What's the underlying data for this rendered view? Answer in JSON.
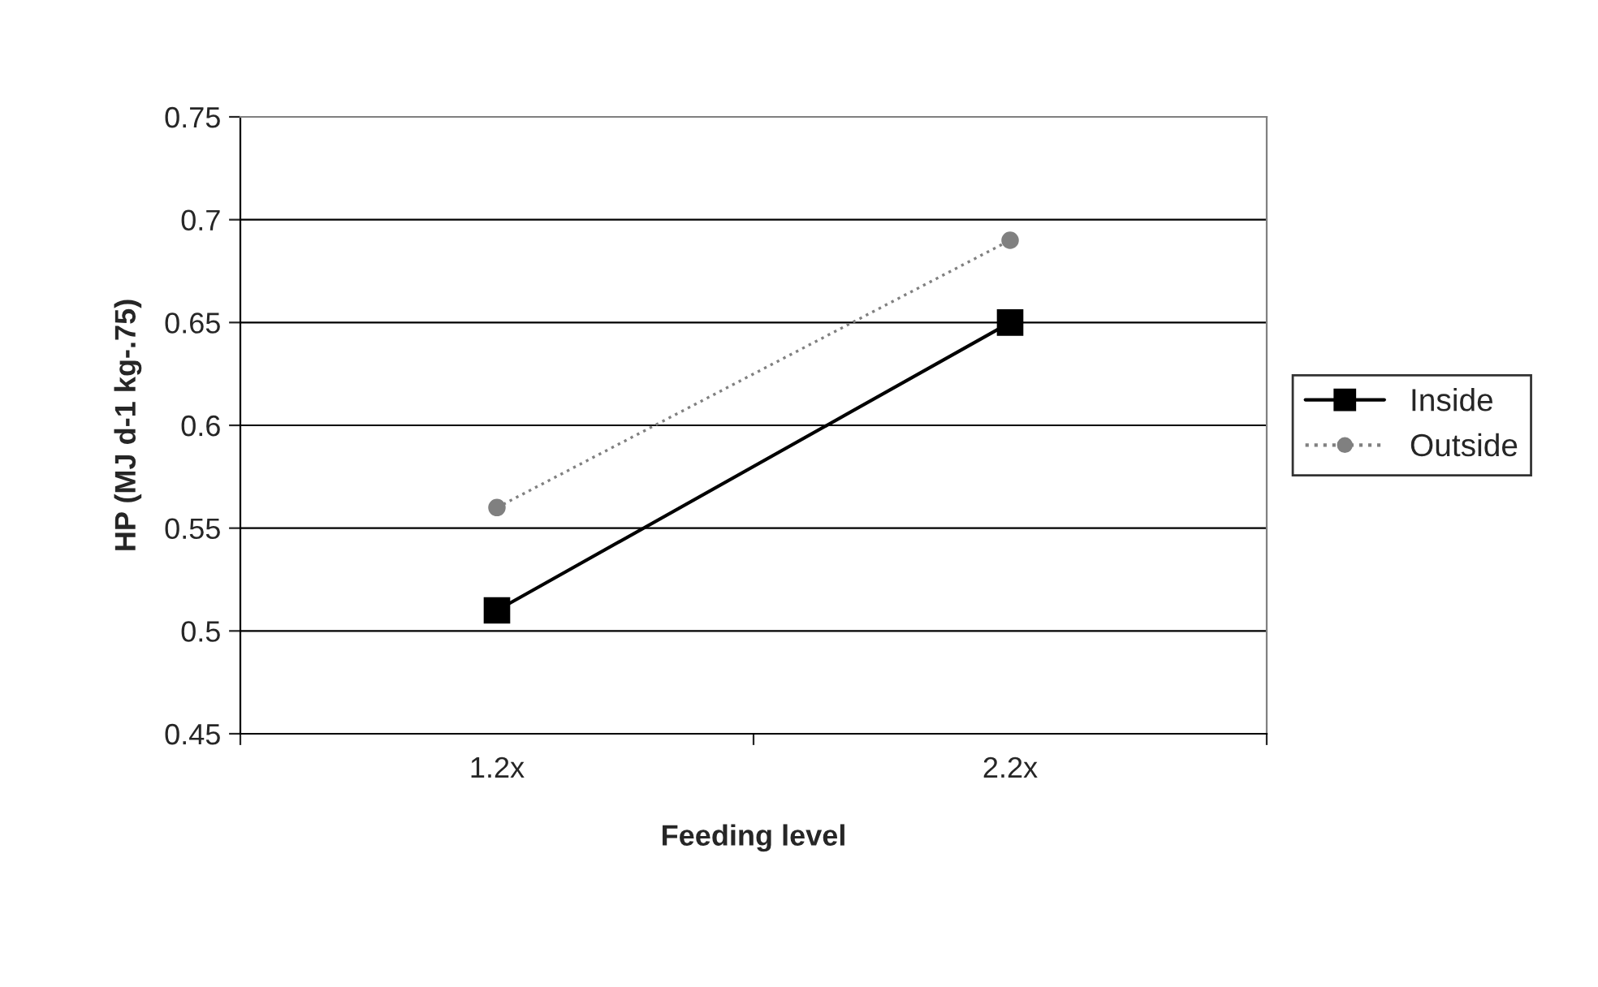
{
  "chart_data": {
    "type": "line",
    "categories": [
      "1.2x",
      "2.2x"
    ],
    "xlabel": "Feeding level",
    "ylabel": "HP (MJ d-1 kg-.75)",
    "ylim": [
      0.45,
      0.75
    ],
    "yticks": [
      0.45,
      0.5,
      0.55,
      0.6,
      0.65,
      0.7,
      0.75
    ],
    "grid": "y",
    "legend": "right",
    "series": [
      {
        "name": "Inside",
        "color": "#000000",
        "values": [
          0.51,
          0.65
        ],
        "marker": "square",
        "line_style": "solid"
      },
      {
        "name": "Outside",
        "color": "#808080",
        "values": [
          0.56,
          0.69
        ],
        "marker": "circle",
        "line_style": "dotted"
      }
    ]
  }
}
